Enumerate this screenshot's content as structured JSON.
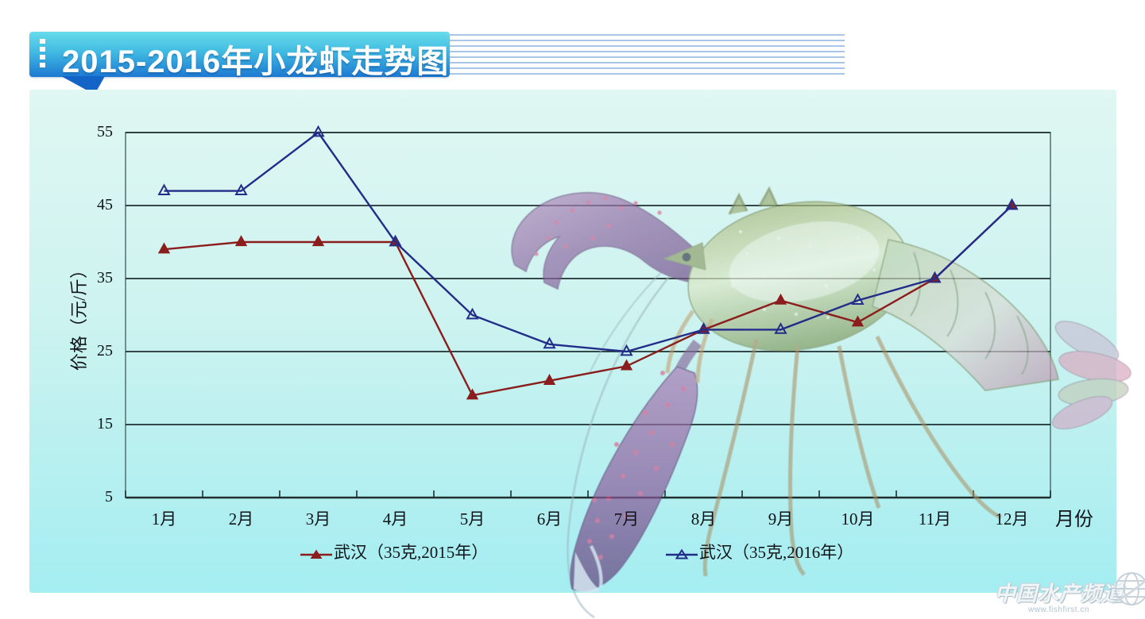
{
  "banner": {
    "title": "2015-2016年小龙虾走势图"
  },
  "chart_data": {
    "type": "line",
    "title": "2015-2016年小龙虾走势图",
    "categories": [
      "1月",
      "2月",
      "3月",
      "4月",
      "5月",
      "6月",
      "7月",
      "8月",
      "9月",
      "10月",
      "11月",
      "12月"
    ],
    "xlabel": "月份",
    "ylabel": "价格（元/斤）",
    "ylim": [
      5,
      55
    ],
    "yticks": [
      5,
      15,
      25,
      35,
      45,
      55
    ],
    "grid": true,
    "legend_position": "bottom",
    "series": [
      {
        "name": "武汉（35克,2015年）",
        "color": "#8b1d1d",
        "marker": "triangle-filled",
        "values": [
          39,
          40,
          40,
          40,
          19,
          21,
          23,
          28,
          32,
          29,
          35,
          45
        ]
      },
      {
        "name": "武汉（35克,2016年）",
        "color": "#222d89",
        "marker": "triangle-open",
        "values": [
          47,
          47,
          55,
          40,
          30,
          26,
          25,
          28,
          28,
          32,
          35,
          45
        ]
      }
    ]
  },
  "watermark": {
    "title": "中国水产频道",
    "subtitle": "www.fishfirst.cn"
  }
}
